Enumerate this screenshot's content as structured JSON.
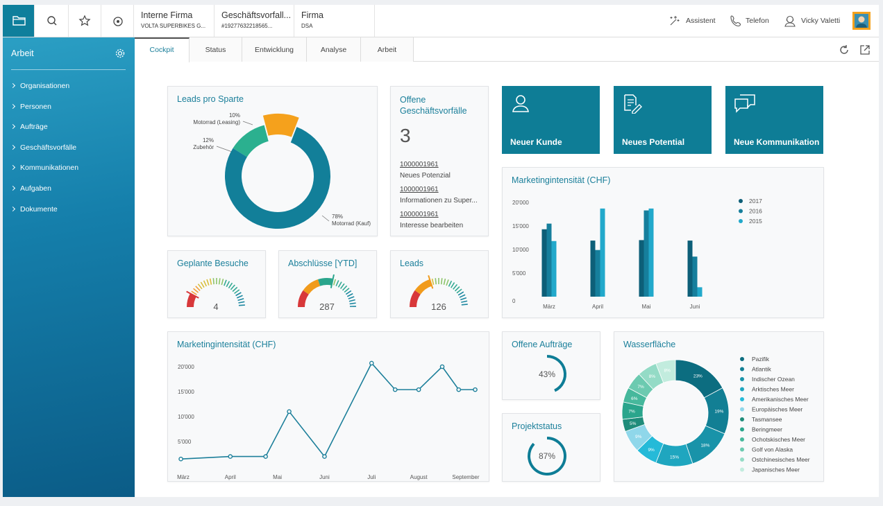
{
  "toolbar": {
    "tabs": [
      {
        "title": "Interne Firma",
        "subtitle": "VOLTA SUPERBIKES G..."
      },
      {
        "title": "Geschäftsvorfall...",
        "subtitle": "#19277632218565..."
      },
      {
        "title": "Firma",
        "subtitle": "DSA"
      }
    ],
    "actions": [
      "Assistent",
      "Telefon",
      "Vicky Valetti"
    ]
  },
  "sidebar": {
    "title": "Arbeit",
    "items": [
      "Organisationen",
      "Personen",
      "Aufträge",
      "Geschäftsvorfälle",
      "Kommunikationen",
      "Aufgaben",
      "Dokumente"
    ]
  },
  "tabs": [
    "Cockpit",
    "Status",
    "Entwicklung",
    "Analyse",
    "Arbeit"
  ],
  "leads_pro_sparte": {
    "type": "donut",
    "title": "Leads pro Sparte",
    "categories": [
      "Zubehör",
      "Motorrad (Leasing)",
      "Motorrad (Kauf)"
    ],
    "values": [
      12,
      10,
      78
    ],
    "value_labels": [
      "12%",
      "10%",
      "78%"
    ],
    "colors": [
      "#2bb08f",
      "#f5a11c",
      "#127f99"
    ]
  },
  "offene_geschaeftsvorfaelle": {
    "title": "Offene Geschäftsvorfälle",
    "count": 3,
    "items": [
      {
        "id": "1000001961",
        "label": "Neues Potenzial"
      },
      {
        "id": "1000001961",
        "label": "Informationen zu Super..."
      },
      {
        "id": "1000001961",
        "label": "Interesse bearbeiten"
      }
    ]
  },
  "actions": [
    "Neuer Kunde",
    "Neues Potential",
    "Neue Kommunikation"
  ],
  "gauges": [
    {
      "title": "Geplante Besuche",
      "value": 4
    },
    {
      "title": "Abschlüsse [YTD]",
      "value": 287
    },
    {
      "title": "Leads",
      "value": 126
    }
  ],
  "marketing_bar": {
    "type": "bar",
    "title": "Marketingintensität (CHF)",
    "categories": [
      "März",
      "April",
      "Mai",
      "Juni"
    ],
    "series": [
      {
        "name": "2017",
        "color": "#0d5f78",
        "values": [
          14300,
          11900,
          12000,
          11900
        ]
      },
      {
        "name": "2016",
        "color": "#167f9c",
        "values": [
          15500,
          9900,
          18300,
          8500
        ]
      },
      {
        "name": "2015",
        "color": "#22a9cb",
        "values": [
          11800,
          18700,
          18700,
          2000
        ]
      }
    ],
    "ylim": [
      0,
      21000
    ],
    "yticks": [
      0,
      {
        "value": 5000,
        "label": "5'000"
      },
      {
        "value": 10000,
        "label": "10'000"
      },
      {
        "value": 15000,
        "label": "15'000"
      },
      {
        "value": 20000,
        "label": "20'000"
      }
    ]
  },
  "marketing_line": {
    "type": "line",
    "title": "Marketingintensität (CHF)",
    "x": [
      2.95,
      4,
      4.75,
      5.25,
      6,
      7,
      7.5,
      8,
      8.5,
      8.85,
      9.2
    ],
    "values": [
      1500,
      2000,
      2000,
      11000,
      2000,
      20700,
      15400,
      15400,
      20000,
      15400,
      15400
    ],
    "color": "#1c7f9a",
    "xlim": [
      2.8,
      9.3
    ],
    "xticks": [
      {
        "value": 3,
        "label": "März"
      },
      {
        "value": 4,
        "label": "April"
      },
      {
        "value": 5,
        "label": "Mai"
      },
      {
        "value": 6,
        "label": "Juni"
      },
      {
        "value": 7,
        "label": "Juli"
      },
      {
        "value": 8,
        "label": "August"
      },
      {
        "value": 9,
        "label": "September"
      }
    ],
    "ylim": [
      0,
      25000
    ],
    "yticks": [
      {
        "value": 5000,
        "label": "5'000"
      },
      {
        "value": 10000,
        "label": "10'000"
      },
      {
        "value": 15000,
        "label": "15'000"
      },
      {
        "value": 20000,
        "label": "20'000"
      }
    ]
  },
  "offene_auftraege": {
    "type": "progress",
    "title": "Offene Aufträge",
    "value": 43,
    "value_label": "43%",
    "color": "#0e7d96"
  },
  "projektstatus": {
    "type": "progress",
    "title": "Projektstatus",
    "value": 87,
    "value_label": "87%",
    "color": "#0e7d96"
  },
  "wasserflaeche": {
    "type": "donut",
    "title": "Wasserfläche",
    "categories": [
      "Pazifik",
      "Atlantik",
      "Indischer Ozean",
      "Arktisches Meer",
      "Amerikanisches Meer",
      "Europäisches Meer",
      "Tasmansee",
      "Beringmeer",
      "Ochotskisches Meer",
      "Golf von Alaska",
      "Ostchinesisches Meer",
      "Japanisches Meer"
    ],
    "values": [
      23,
      19,
      18,
      15,
      9,
      9,
      5,
      7,
      6,
      7,
      8,
      8
    ],
    "value_labels": [
      "23%",
      "19%",
      "18%",
      "15%",
      "9%",
      "9%",
      "5%",
      "7%",
      "6%",
      "7%",
      "8%",
      "8%"
    ],
    "colors": [
      "#0c6d80",
      "#127f94",
      "#1993a9",
      "#1fa6bf",
      "#25bad8",
      "#8fd7ea",
      "#1f8c7a",
      "#2aa58c",
      "#46b89c",
      "#6ccab0",
      "#94dbc6",
      "#c2ecde"
    ]
  }
}
